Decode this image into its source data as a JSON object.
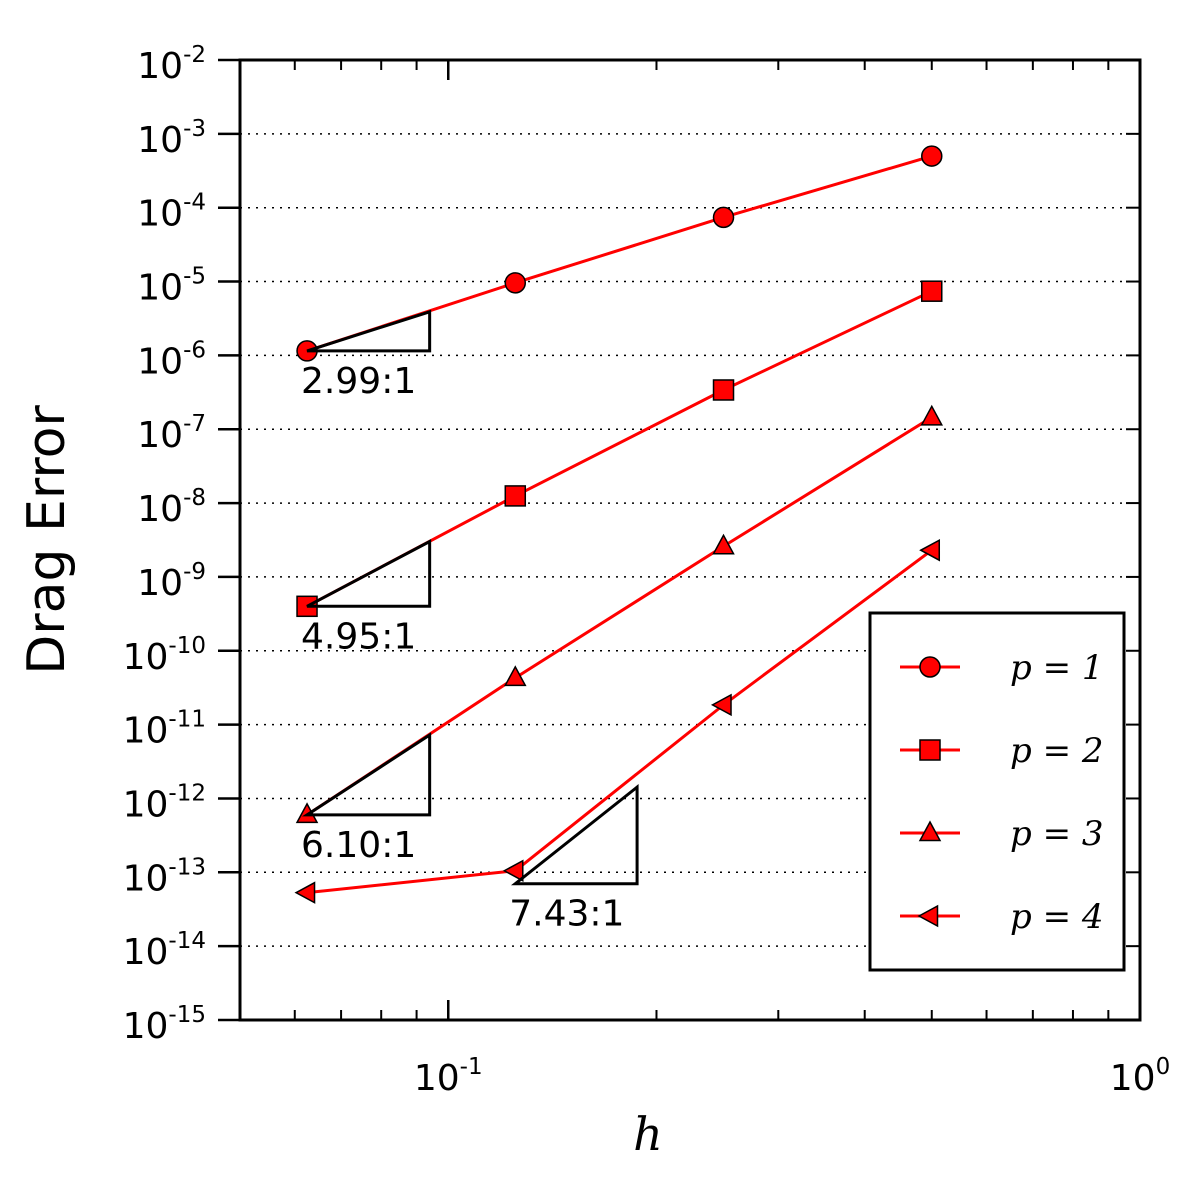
{
  "chart_data": {
    "type": "line",
    "xlabel": "h",
    "ylabel": "Drag Error",
    "xscale": "log",
    "yscale": "log",
    "xlim": [
      0.05,
      1.0
    ],
    "ylim": [
      1e-15,
      0.01
    ],
    "grid": "y-dotted",
    "legend_placement": "lower-right",
    "x_ticks": [
      {
        "base": "10",
        "exp": "-1",
        "value": 0.1
      },
      {
        "base": "10",
        "exp": "0",
        "value": 1
      }
    ],
    "y_ticks": [
      {
        "base": "10",
        "exp": "-2",
        "value": 0.01
      },
      {
        "base": "10",
        "exp": "-3",
        "value": 0.001
      },
      {
        "base": "10",
        "exp": "-4",
        "value": 0.0001
      },
      {
        "base": "10",
        "exp": "-5",
        "value": 1e-05
      },
      {
        "base": "10",
        "exp": "-6",
        "value": 1e-06
      },
      {
        "base": "10",
        "exp": "-7",
        "value": 1e-07
      },
      {
        "base": "10",
        "exp": "-8",
        "value": 1e-08
      },
      {
        "base": "10",
        "exp": "-9",
        "value": 1e-09
      },
      {
        "base": "10",
        "exp": "-10",
        "value": 1e-10
      },
      {
        "base": "10",
        "exp": "-11",
        "value": 1e-11
      },
      {
        "base": "10",
        "exp": "-12",
        "value": 1e-12
      },
      {
        "base": "10",
        "exp": "-13",
        "value": 1e-13
      },
      {
        "base": "10",
        "exp": "-14",
        "value": 1e-14
      },
      {
        "base": "10",
        "exp": "-15",
        "value": 1e-15
      }
    ],
    "series": [
      {
        "name": "p = 1",
        "marker": "circle",
        "color": "#ff0000",
        "x": [
          0.0625,
          0.125,
          0.25,
          0.5
        ],
        "y": [
          1.15e-06,
          9.6e-06,
          7.4e-05,
          0.0005
        ]
      },
      {
        "name": "p = 2",
        "marker": "square",
        "color": "#ff0000",
        "x": [
          0.0625,
          0.125,
          0.25,
          0.5
        ],
        "y": [
          4e-10,
          1.25e-08,
          3.4e-07,
          7.4e-06
        ]
      },
      {
        "name": "p = 3",
        "marker": "triangle-up",
        "color": "#ff0000",
        "x": [
          0.0625,
          0.125,
          0.25,
          0.5
        ],
        "y": [
          6e-13,
          4.3e-11,
          2.6e-09,
          1.45e-07
        ]
      },
      {
        "name": "p = 4",
        "marker": "triangle-left",
        "color": "#ff0000",
        "x": [
          0.0625,
          0.125,
          0.25,
          0.5
        ],
        "y": [
          5.3e-14,
          1.05e-13,
          1.85e-11,
          2.3e-09
        ]
      }
    ],
    "annotations": [
      {
        "label": "2.99:1",
        "slope": 2.99,
        "x0": 0.0625,
        "y0": 1.15e-06,
        "x1": 0.094
      },
      {
        "label": "4.95:1",
        "slope": 4.95,
        "x0": 0.0625,
        "y0": 4e-10,
        "x1": 0.094
      },
      {
        "label": "6.10:1",
        "slope": 6.1,
        "x0": 0.0625,
        "y0": 6e-13,
        "x1": 0.094
      },
      {
        "label": "7.43:1",
        "slope": 7.43,
        "x0": 0.125,
        "y0": 7e-14,
        "x1": 0.1875
      }
    ]
  }
}
